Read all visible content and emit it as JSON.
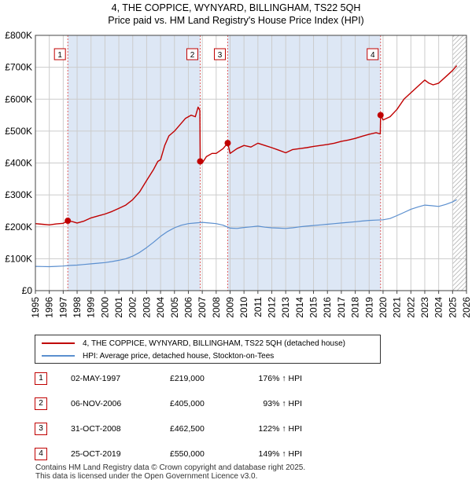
{
  "title": {
    "line1": "4, THE COPPICE, WYNYARD, BILLINGHAM, TS22 5QH",
    "line2": "Price paid vs. HM Land Registry's House Price Index (HPI)"
  },
  "colors": {
    "price_line": "#c00000",
    "hpi_line": "#5b8fcf",
    "band": "#dde7f5",
    "grid": "#cccccc",
    "hatch": "#9a9a9a"
  },
  "chart_data": {
    "type": "line",
    "title": "Price paid vs. HM Land Registry's House Price Index (HPI)",
    "xlabel": "",
    "ylabel": "",
    "xlim": [
      1995,
      2026
    ],
    "ylim": [
      0,
      800000
    ],
    "x_ticks": [
      1995,
      1996,
      1997,
      1998,
      1999,
      2000,
      2001,
      2002,
      2003,
      2004,
      2005,
      2006,
      2007,
      2008,
      2009,
      2010,
      2011,
      2012,
      2013,
      2014,
      2015,
      2016,
      2017,
      2018,
      2019,
      2020,
      2021,
      2022,
      2023,
      2024,
      2025,
      2026
    ],
    "y_ticks": [
      0,
      100000,
      200000,
      300000,
      400000,
      500000,
      600000,
      700000,
      800000
    ],
    "y_tick_labels": [
      "£0",
      "£100K",
      "£200K",
      "£300K",
      "£400K",
      "£500K",
      "£600K",
      "£700K",
      "£800K"
    ],
    "grid": true,
    "shaded_ranges": [
      [
        1997.33,
        2006.85
      ],
      [
        2008.83,
        2019.82
      ]
    ],
    "hatched_from": 2025.0,
    "series": [
      {
        "name": "4, THE COPPICE, WYNYARD, BILLINGHAM, TS22 5QH (detached house)",
        "color": "#c00000",
        "x": [
          1995.0,
          1995.5,
          1996.0,
          1996.5,
          1997.0,
          1997.33,
          1997.7,
          1998.0,
          1998.5,
          1999.0,
          1999.5,
          2000.0,
          2000.5,
          2001.0,
          2001.5,
          2002.0,
          2002.5,
          2003.0,
          2003.5,
          2003.8,
          2004.0,
          2004.3,
          2004.6,
          2005.0,
          2005.4,
          2005.8,
          2006.2,
          2006.5,
          2006.7,
          2006.83,
          2006.85,
          2007.0,
          2007.3,
          2007.7,
          2008.0,
          2008.5,
          2008.83,
          2009.0,
          2009.5,
          2010.0,
          2010.5,
          2011.0,
          2011.5,
          2012.0,
          2012.5,
          2013.0,
          2013.5,
          2014.0,
          2014.5,
          2015.0,
          2015.5,
          2016.0,
          2016.5,
          2017.0,
          2017.5,
          2018.0,
          2018.5,
          2019.0,
          2019.5,
          2019.8,
          2019.82,
          2020.0,
          2020.5,
          2021.0,
          2021.5,
          2022.0,
          2022.5,
          2023.0,
          2023.3,
          2023.6,
          2024.0,
          2024.5,
          2025.0,
          2025.3
        ],
        "y": [
          210000,
          208000,
          206000,
          209000,
          211000,
          219000,
          216000,
          212000,
          218000,
          228000,
          234000,
          240000,
          248000,
          258000,
          268000,
          285000,
          310000,
          345000,
          380000,
          405000,
          410000,
          455000,
          485000,
          500000,
          520000,
          540000,
          550000,
          545000,
          575000,
          565000,
          405000,
          400000,
          420000,
          430000,
          430000,
          445000,
          462500,
          430000,
          445000,
          455000,
          450000,
          462000,
          455000,
          448000,
          440000,
          432000,
          442000,
          445000,
          448000,
          452000,
          455000,
          458000,
          462000,
          468000,
          472000,
          477000,
          484000,
          490000,
          495000,
          491000,
          550000,
          535000,
          545000,
          568000,
          600000,
          620000,
          640000,
          660000,
          650000,
          645000,
          650000,
          670000,
          690000,
          705000
        ]
      },
      {
        "name": "HPI: Average price, detached house, Stockton-on-Tees",
        "color": "#5b8fcf",
        "x": [
          1995.0,
          1995.5,
          1996.0,
          1996.5,
          1997.0,
          1997.5,
          1998.0,
          1998.5,
          1999.0,
          1999.5,
          2000.0,
          2000.5,
          2001.0,
          2001.5,
          2002.0,
          2002.5,
          2003.0,
          2003.5,
          2004.0,
          2004.5,
          2005.0,
          2005.5,
          2006.0,
          2006.5,
          2007.0,
          2007.5,
          2008.0,
          2008.5,
          2009.0,
          2009.5,
          2010.0,
          2010.5,
          2011.0,
          2011.5,
          2012.0,
          2012.5,
          2013.0,
          2013.5,
          2014.0,
          2014.5,
          2015.0,
          2015.5,
          2016.0,
          2016.5,
          2017.0,
          2017.5,
          2018.0,
          2018.5,
          2019.0,
          2019.5,
          2020.0,
          2020.5,
          2021.0,
          2021.5,
          2022.0,
          2022.5,
          2023.0,
          2023.5,
          2024.0,
          2024.5,
          2025.0,
          2025.3
        ],
        "y": [
          76000,
          75500,
          75000,
          76000,
          77000,
          79000,
          80000,
          82000,
          84000,
          86000,
          88000,
          91000,
          95000,
          100000,
          108000,
          120000,
          135000,
          152000,
          170000,
          185000,
          197000,
          205000,
          210000,
          212000,
          214000,
          212000,
          210000,
          205000,
          196000,
          195000,
          198000,
          200000,
          202000,
          199000,
          197000,
          196000,
          195000,
          197000,
          200000,
          202000,
          204000,
          206000,
          208000,
          210000,
          212000,
          214000,
          216000,
          218000,
          220000,
          221000,
          222000,
          226000,
          235000,
          245000,
          255000,
          262000,
          268000,
          266000,
          264000,
          270000,
          278000,
          285000
        ]
      }
    ],
    "markers": [
      {
        "label": "1",
        "x": 1997.33,
        "y": 219000
      },
      {
        "label": "2",
        "x": 2006.85,
        "y": 405000
      },
      {
        "label": "3",
        "x": 2008.83,
        "y": 462500
      },
      {
        "label": "4",
        "x": 2019.82,
        "y": 550000
      }
    ]
  },
  "legend": {
    "items": [
      {
        "label": "4, THE COPPICE, WYNYARD, BILLINGHAM, TS22 5QH (detached house)",
        "color": "#c00000"
      },
      {
        "label": "HPI: Average price, detached house, Stockton-on-Tees",
        "color": "#5b8fcf"
      }
    ]
  },
  "transactions": [
    {
      "num": "1",
      "date": "02-MAY-1997",
      "price": "£219,000",
      "hpi": "176% ↑ HPI"
    },
    {
      "num": "2",
      "date": "06-NOV-2006",
      "price": "£405,000",
      "hpi": "93% ↑ HPI"
    },
    {
      "num": "3",
      "date": "31-OCT-2008",
      "price": "£462,500",
      "hpi": "122% ↑ HPI"
    },
    {
      "num": "4",
      "date": "25-OCT-2019",
      "price": "£550,000",
      "hpi": "149% ↑ HPI"
    }
  ],
  "footer": {
    "line1": "Contains HM Land Registry data © Crown copyright and database right 2025.",
    "line2": "This data is licensed under the Open Government Licence v3.0."
  }
}
